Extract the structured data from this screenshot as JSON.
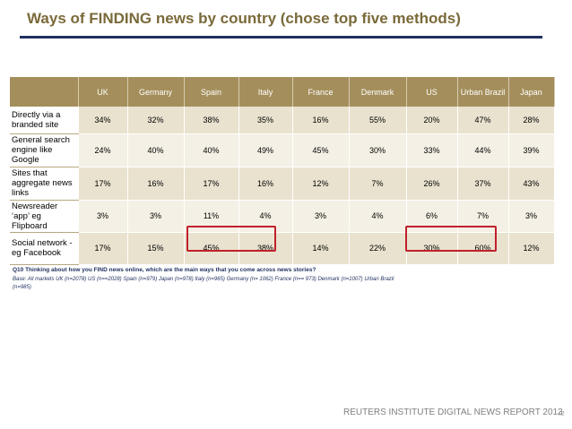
{
  "title": "Ways of FINDING news by country  (chose top five methods)",
  "table": {
    "columns": [
      "UK",
      "Germany",
      "Spain",
      "Italy",
      "France",
      "Denmark",
      "US",
      "Urban Brazil",
      "Japan"
    ],
    "rows": [
      {
        "label": "Directly via a branded site",
        "values": [
          "34%",
          "32%",
          "38%",
          "35%",
          "16%",
          "55%",
          "20%",
          "47%",
          "28%"
        ]
      },
      {
        "label": "General search engine like Google",
        "values": [
          "24%",
          "40%",
          "40%",
          "49%",
          "45%",
          "30%",
          "33%",
          "44%",
          "39%"
        ]
      },
      {
        "label": "Sites that aggregate news links",
        "values": [
          "17%",
          "16%",
          "17%",
          "16%",
          "12%",
          "7%",
          "26%",
          "37%",
          "43%"
        ]
      },
      {
        "label": "Newsreader ‘app’ eg Flipboard",
        "values": [
          "3%",
          "3%",
          "11%",
          "4%",
          "3%",
          "4%",
          "6%",
          "7%",
          "3%"
        ]
      },
      {
        "label": "Social network - eg Facebook",
        "values": [
          "17%",
          "15%",
          "45%",
          "38%",
          "14%",
          "22%",
          "30%",
          "60%",
          "12%"
        ]
      }
    ]
  },
  "highlight_color": "#c0202a",
  "question": "Q10 Thinking about how you FIND news online, which are the main ways that you come across news stories?",
  "base": "Base: All markets UK (n=2078)  US (n==2028) Spain  (n=979) Japan (n=978) Italy (n=965) Germany (n= 1062)  France (n== 973)  Denmark (n=1007)  Urban Brazil  (n=985)",
  "footer": "REUTERS INSTITUTE DIGITAL NEWS REPORT 2013",
  "page_number": "42"
}
